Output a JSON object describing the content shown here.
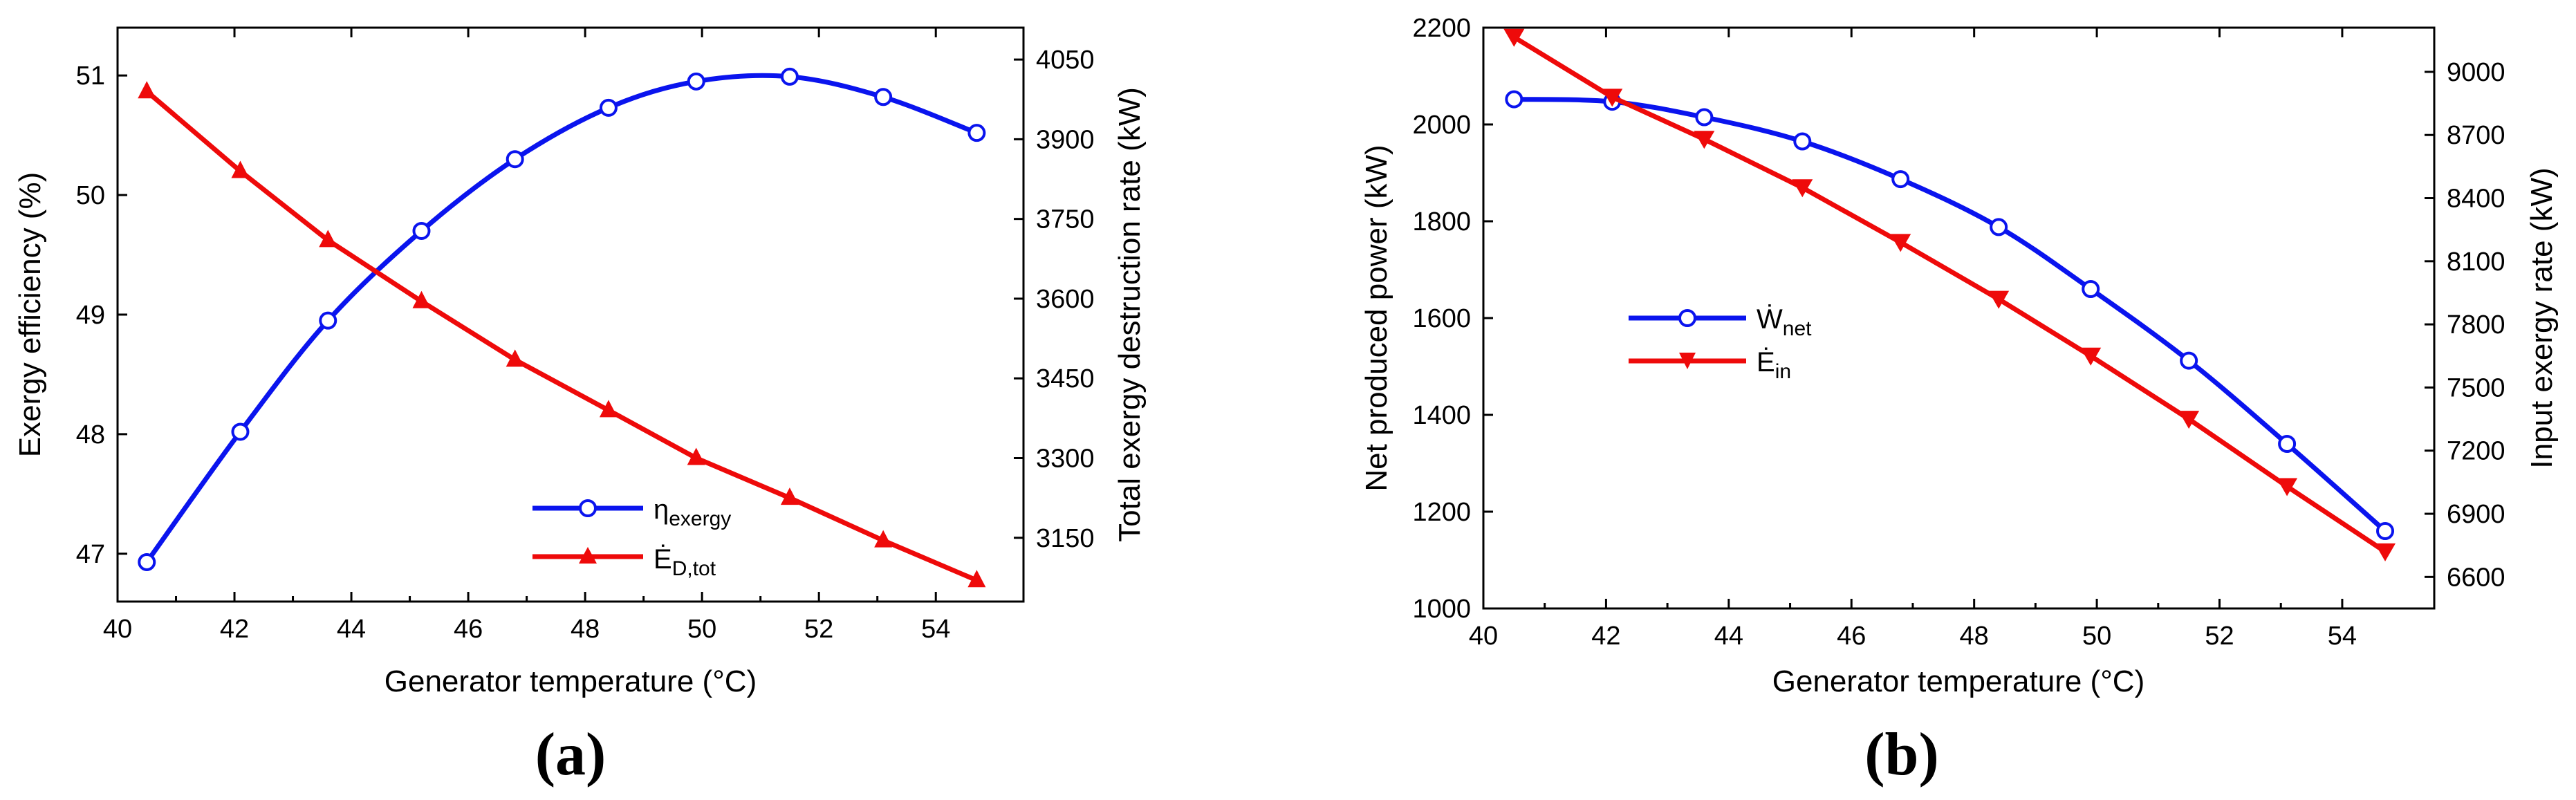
{
  "colors": {
    "blue": "#0a14ee",
    "red": "#ee0a0a",
    "axis": "#000000"
  },
  "chart_data": [
    {
      "type": "line",
      "panel_label": "(a)",
      "xlabel": "Generator temperature (°C)",
      "ylabel_left": "Exergy efficiency (%)",
      "ylabel_right": "Total exergy destruction rate (kW)",
      "xlim": [
        40,
        55.5
      ],
      "ylim_left": [
        46.6,
        51.4
      ],
      "ylim_right": [
        3030,
        4110
      ],
      "x_ticks": [
        40,
        42,
        44,
        46,
        48,
        50,
        52,
        54
      ],
      "y_left_ticks": [
        47,
        48,
        49,
        50,
        51
      ],
      "y_right_ticks": [
        3150,
        3300,
        3450,
        3600,
        3750,
        3900,
        4050
      ],
      "x": [
        40.5,
        42.1,
        43.6,
        45.2,
        46.8,
        48.4,
        49.9,
        51.5,
        53.1,
        54.7
      ],
      "series": [
        {
          "name": "η",
          "name_sub": "exergy",
          "axis": "left",
          "marker": "circle",
          "color": "#0a14ee",
          "values": [
            46.93,
            48.02,
            48.95,
            49.7,
            50.3,
            50.73,
            50.95,
            50.99,
            50.82,
            50.52
          ]
        },
        {
          "name": "Ė",
          "name_sub": "D,tot",
          "axis": "right",
          "marker": "triangle-up",
          "color": "#ee0a0a",
          "values": [
            3990,
            3840,
            3710,
            3595,
            3485,
            3390,
            3300,
            3225,
            3145,
            3070
          ]
        }
      ]
    },
    {
      "type": "line",
      "panel_label": "(b)",
      "xlabel": "Generator temperature (°C)",
      "ylabel_left": "Net produced power (kW)",
      "ylabel_right": "Input exergy rate (kW)",
      "xlim": [
        40,
        55.5
      ],
      "ylim_left": [
        1000,
        2200
      ],
      "ylim_right": [
        6450,
        9210
      ],
      "x_ticks": [
        40,
        42,
        44,
        46,
        48,
        50,
        52,
        54
      ],
      "y_left_ticks": [
        1000,
        1200,
        1400,
        1600,
        1800,
        2000,
        2200
      ],
      "y_right_ticks": [
        6600,
        6900,
        7200,
        7500,
        7800,
        8100,
        8400,
        8700,
        9000
      ],
      "x": [
        40.5,
        42.1,
        43.6,
        45.2,
        46.8,
        48.4,
        49.9,
        51.5,
        53.1,
        54.7
      ],
      "series": [
        {
          "name": "Ẇ",
          "name_sub": "net",
          "axis": "left",
          "marker": "circle",
          "color": "#0a14ee",
          "values": [
            2052,
            2047,
            2015,
            1965,
            1887,
            1788,
            1660,
            1512,
            1340,
            1160
          ]
        },
        {
          "name": "Ė",
          "name_sub": "in",
          "axis": "right",
          "marker": "triangle-down",
          "color": "#ee0a0a",
          "values": [
            9165,
            8880,
            8680,
            8450,
            8190,
            7920,
            7650,
            7350,
            7030,
            6720
          ]
        }
      ]
    }
  ]
}
